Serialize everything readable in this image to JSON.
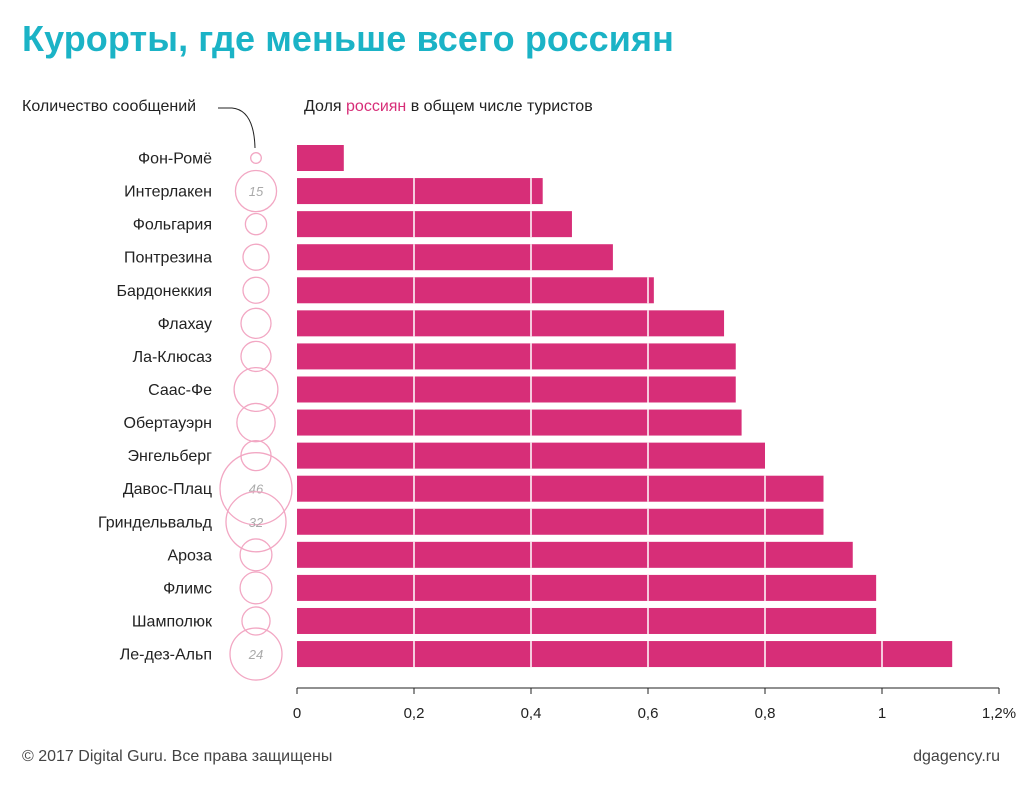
{
  "header": {
    "title": "Курорты, где меньше всего россиян",
    "count_label": "Количество сообщений",
    "share_label_before": "Доля ",
    "share_label_accent": "россиян",
    "share_label_after": " в общем числе туристов"
  },
  "footer": {
    "copyright": "© 2017 Digital Guru. Все права защищены",
    "site": "dgagency.ru"
  },
  "colors": {
    "title": "#1bb3c6",
    "bar": "#d72e78",
    "bubble": "#f2a7c3",
    "accent": "#d72e78"
  },
  "chart_data": {
    "type": "bar",
    "orientation": "horizontal",
    "categories": [
      "Фон-Ромё",
      "Интерлакен",
      "Фольгария",
      "Понтрезина",
      "Бардонеккия",
      "Флахау",
      "Ла-Клюсаз",
      "Саас-Фе",
      "Обертауэрн",
      "Энгельберг",
      "Давос-Плац",
      "Гриндельвальд",
      "Ароза",
      "Флимс",
      "Шамполюк",
      "Ле-дез-Альп"
    ],
    "series": [
      {
        "values": [
          0.08,
          0.42,
          0.47,
          0.54,
          0.61,
          0.73,
          0.75,
          0.75,
          0.76,
          0.8,
          0.9,
          0.9,
          0.95,
          0.99,
          0.99,
          1.12
        ]
      }
    ],
    "message_counts": [
      1,
      15,
      4,
      6,
      6,
      8,
      8,
      17,
      13,
      8,
      46,
      32,
      9,
      9,
      7,
      24
    ],
    "message_count_labels": [
      "",
      "15",
      "",
      "",
      "",
      "",
      "",
      "",
      "",
      "",
      "46",
      "32",
      "",
      "",
      "",
      "24"
    ],
    "xlim": [
      0,
      1.2
    ],
    "xticks": [
      0,
      0.2,
      0.4,
      0.6,
      0.8,
      1.0,
      1.2
    ],
    "xtick_labels": [
      "0",
      "0,2",
      "0,4",
      "0,6",
      "0,8",
      "1",
      "1,2%"
    ],
    "gridlines_inside_bars": true
  }
}
